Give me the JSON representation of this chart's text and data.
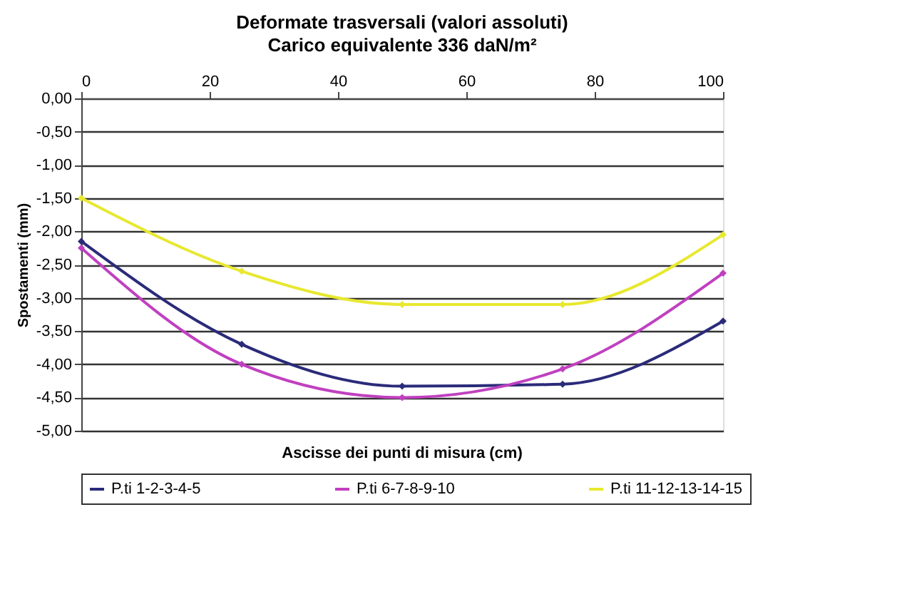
{
  "chart_data": {
    "type": "line",
    "title": "Deformate trasversali (valori assoluti)",
    "subtitle": "Carico equivalente 336 daN/m²",
    "xlabel": "Ascisse dei punti di misura (cm)",
    "ylabel": "Spostamenti (mm)",
    "x": [
      0,
      25,
      50,
      75,
      100
    ],
    "series": [
      {
        "name": "P.ti 1-2-3-4-5",
        "color": "#2b2b7a",
        "values": [
          -2.15,
          -3.7,
          -4.33,
          -4.3,
          -3.35
        ]
      },
      {
        "name": "P.ti 6-7-8-9-10",
        "color": "#c040c0",
        "values": [
          -2.25,
          -4.0,
          -4.5,
          -4.07,
          -2.63
        ]
      },
      {
        "name": "P.ti 11-12-13-14-15",
        "color": "#e8e830",
        "values": [
          -1.5,
          -2.6,
          -3.1,
          -3.1,
          -2.05
        ]
      }
    ],
    "xlim": [
      0,
      100
    ],
    "xticks": [
      0,
      20,
      40,
      60,
      80,
      100
    ],
    "ylim": [
      -5,
      0
    ],
    "yticks": [
      {
        "value": 0,
        "label": "0,00"
      },
      {
        "value": -0.5,
        "label": "-0,50"
      },
      {
        "value": -1,
        "label": "-1,00"
      },
      {
        "value": -1.5,
        "label": "-1,50"
      },
      {
        "value": -2,
        "label": "-2,00"
      },
      {
        "value": -2.5,
        "label": "-2,50"
      },
      {
        "value": -3,
        "label": "-3,00"
      },
      {
        "value": -3.5,
        "label": "-3,50"
      },
      {
        "value": -4,
        "label": "-4,00"
      },
      {
        "value": -4.5,
        "label": "-4,50"
      },
      {
        "value": -5,
        "label": "-5,00"
      }
    ],
    "grid": "y",
    "legend": "bottom",
    "marker": "diamond",
    "line_style": "solid"
  }
}
